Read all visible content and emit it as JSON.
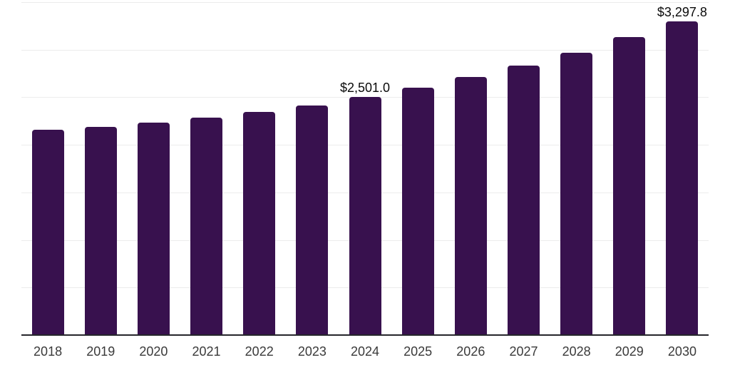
{
  "chart": {
    "background_color": "#ffffff",
    "bar_color": "#38114E",
    "gridline_color": "#ececec",
    "axis_line_color": "#26262b",
    "tick_label_color": "#3a3a3a",
    "value_label_color": "#0b0b0b"
  },
  "chart_data": {
    "type": "bar",
    "title": "",
    "xlabel": "",
    "ylabel": "",
    "categories": [
      "2018",
      "2019",
      "2020",
      "2021",
      "2022",
      "2023",
      "2024",
      "2025",
      "2026",
      "2027",
      "2028",
      "2029",
      "2030"
    ],
    "values": [
      2155,
      2185,
      2230,
      2288,
      2348,
      2410,
      2501.0,
      2599,
      2710,
      2830,
      2970,
      3130,
      3297.8
    ],
    "value_labels": {
      "2024": "$2,501.0",
      "2030": "$3,297.8"
    },
    "ylim": [
      0,
      3500
    ],
    "gridline_step": 500,
    "grid": "horizontal-only",
    "y_axis_tick_labels": "none",
    "legend": "none"
  }
}
